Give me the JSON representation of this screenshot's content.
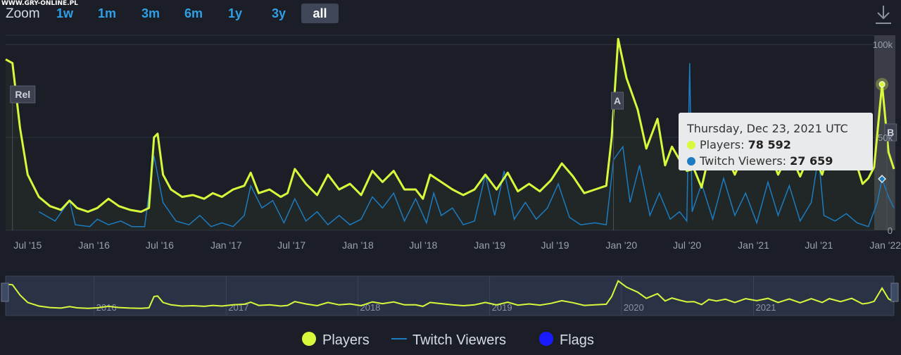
{
  "watermark": "WWW.GRY-ONLINE.PL",
  "zoom": {
    "label": "Zoom",
    "buttons": [
      {
        "label": "1w",
        "active": false
      },
      {
        "label": "1m",
        "active": false
      },
      {
        "label": "3m",
        "active": false
      },
      {
        "label": "6m",
        "active": false
      },
      {
        "label": "1y",
        "active": false
      },
      {
        "label": "3y",
        "active": false
      },
      {
        "label": "all",
        "active": true
      }
    ]
  },
  "tooltip": {
    "date": "Thursday, Dec 23, 2021 UTC",
    "players_label": "Players: ",
    "players_value": "78 592",
    "viewers_label": "Twitch Viewers: ",
    "viewers_value": "27 659"
  },
  "legend": {
    "players": "Players",
    "viewers": "Twitch Viewers",
    "flags": "Flags"
  },
  "colors": {
    "players": "#d7f83b",
    "viewers": "#1c7cbf",
    "flags": "#1a1aff",
    "background": "#1b1e27",
    "accent": "#2f9fe6"
  },
  "chart_data": {
    "type": "line",
    "x_range": [
      "2015-05-01",
      "2022-01-25"
    ],
    "y_range": [
      0,
      105000
    ],
    "y_ticks": [
      {
        "value": 0,
        "label": "0"
      },
      {
        "value": 50000,
        "label": "50k"
      },
      {
        "value": 100000,
        "label": "100k"
      }
    ],
    "x_ticks": [
      {
        "date": "2015-07-01",
        "label": "Jul '15"
      },
      {
        "date": "2016-01-01",
        "label": "Jan '16"
      },
      {
        "date": "2016-07-01",
        "label": "Jul '16"
      },
      {
        "date": "2017-01-01",
        "label": "Jan '17"
      },
      {
        "date": "2017-07-01",
        "label": "Jul '17"
      },
      {
        "date": "2018-01-01",
        "label": "Jan '18"
      },
      {
        "date": "2018-07-01",
        "label": "Jul '18"
      },
      {
        "date": "2019-01-01",
        "label": "Jan '19"
      },
      {
        "date": "2019-07-01",
        "label": "Jul '19"
      },
      {
        "date": "2020-01-01",
        "label": "Jan '20"
      },
      {
        "date": "2020-07-01",
        "label": "Jul '20"
      },
      {
        "date": "2021-01-01",
        "label": "Jan '21"
      },
      {
        "date": "2021-07-01",
        "label": "Jul '21"
      },
      {
        "date": "2022-01-01",
        "label": "Jan '22"
      }
    ],
    "navigator_labels": [
      {
        "date": "2016-01-01",
        "label": "2016"
      },
      {
        "date": "2017-01-01",
        "label": "2017"
      },
      {
        "date": "2018-01-01",
        "label": "2018"
      },
      {
        "date": "2019-01-01",
        "label": "2019"
      },
      {
        "date": "2020-01-01",
        "label": "2020"
      },
      {
        "date": "2021-01-01",
        "label": "2021"
      }
    ],
    "flags": [
      {
        "date": "2015-05-20",
        "label": "Rel"
      },
      {
        "date": "2019-12-10",
        "label": "A"
      },
      {
        "date": "2022-01-05",
        "label": "B"
      }
    ],
    "series": [
      {
        "name": "Players",
        "points": [
          [
            "2015-05-01",
            92000
          ],
          [
            "2015-05-20",
            90000
          ],
          [
            "2015-06-10",
            55000
          ],
          [
            "2015-07-01",
            30000
          ],
          [
            "2015-08-01",
            18000
          ],
          [
            "2015-09-01",
            13000
          ],
          [
            "2015-10-01",
            11000
          ],
          [
            "2015-10-25",
            16000
          ],
          [
            "2015-11-15",
            12000
          ],
          [
            "2015-12-15",
            10000
          ],
          [
            "2016-01-10",
            12000
          ],
          [
            "2016-02-10",
            17000
          ],
          [
            "2016-03-10",
            13000
          ],
          [
            "2016-04-10",
            11000
          ],
          [
            "2016-05-10",
            10000
          ],
          [
            "2016-06-01",
            12000
          ],
          [
            "2016-06-15",
            50000
          ],
          [
            "2016-06-25",
            52000
          ],
          [
            "2016-07-10",
            30000
          ],
          [
            "2016-08-01",
            22000
          ],
          [
            "2016-09-01",
            18000
          ],
          [
            "2016-10-01",
            19000
          ],
          [
            "2016-11-01",
            17000
          ],
          [
            "2016-11-25",
            20000
          ],
          [
            "2016-12-20",
            18000
          ],
          [
            "2017-01-20",
            22000
          ],
          [
            "2017-02-20",
            24000
          ],
          [
            "2017-03-10",
            31000
          ],
          [
            "2017-04-01",
            20000
          ],
          [
            "2017-05-01",
            22000
          ],
          [
            "2017-06-01",
            18000
          ],
          [
            "2017-06-20",
            20000
          ],
          [
            "2017-07-10",
            33000
          ],
          [
            "2017-08-10",
            25000
          ],
          [
            "2017-09-10",
            19000
          ],
          [
            "2017-10-10",
            30000
          ],
          [
            "2017-11-10",
            22000
          ],
          [
            "2017-12-10",
            25000
          ],
          [
            "2018-01-10",
            19000
          ],
          [
            "2018-02-10",
            32000
          ],
          [
            "2018-03-10",
            26000
          ],
          [
            "2018-04-10",
            32000
          ],
          [
            "2018-05-10",
            22000
          ],
          [
            "2018-06-10",
            22000
          ],
          [
            "2018-06-30",
            17000
          ],
          [
            "2018-07-20",
            30000
          ],
          [
            "2018-08-20",
            26000
          ],
          [
            "2018-09-20",
            22000
          ],
          [
            "2018-10-20",
            19000
          ],
          [
            "2018-11-20",
            22000
          ],
          [
            "2018-12-20",
            30000
          ],
          [
            "2019-01-20",
            22000
          ],
          [
            "2019-02-20",
            31000
          ],
          [
            "2019-03-20",
            21000
          ],
          [
            "2019-04-20",
            25000
          ],
          [
            "2019-05-20",
            21000
          ],
          [
            "2019-06-20",
            27000
          ],
          [
            "2019-07-20",
            36000
          ],
          [
            "2019-08-20",
            29000
          ],
          [
            "2019-09-20",
            20000
          ],
          [
            "2019-10-20",
            22000
          ],
          [
            "2019-11-20",
            24000
          ],
          [
            "2019-12-05",
            50000
          ],
          [
            "2019-12-23",
            103000
          ],
          [
            "2020-01-15",
            82000
          ],
          [
            "2020-02-15",
            65000
          ],
          [
            "2020-03-10",
            44000
          ],
          [
            "2020-04-10",
            60000
          ],
          [
            "2020-05-01",
            35000
          ],
          [
            "2020-05-20",
            45000
          ],
          [
            "2020-06-10",
            38000
          ],
          [
            "2020-06-30",
            32000
          ],
          [
            "2020-07-20",
            33000
          ],
          [
            "2020-08-10",
            23000
          ],
          [
            "2020-08-30",
            40000
          ],
          [
            "2020-09-20",
            35000
          ],
          [
            "2020-10-15",
            41000
          ],
          [
            "2020-11-10",
            30000
          ],
          [
            "2020-12-10",
            43000
          ],
          [
            "2021-01-10",
            36000
          ],
          [
            "2021-02-10",
            44000
          ],
          [
            "2021-03-10",
            30000
          ],
          [
            "2021-04-10",
            42000
          ],
          [
            "2021-05-10",
            29000
          ],
          [
            "2021-06-10",
            43000
          ],
          [
            "2021-07-10",
            30000
          ],
          [
            "2021-07-30",
            43000
          ],
          [
            "2021-08-30",
            33000
          ],
          [
            "2021-09-30",
            44000
          ],
          [
            "2021-10-30",
            25000
          ],
          [
            "2021-11-15",
            28000
          ],
          [
            "2021-12-01",
            34000
          ],
          [
            "2021-12-23",
            78592
          ],
          [
            "2022-01-10",
            42000
          ],
          [
            "2022-01-25",
            33000
          ]
        ]
      },
      {
        "name": "Twitch Viewers",
        "points": [
          [
            "2015-08-01",
            10000
          ],
          [
            "2015-09-15",
            5000
          ],
          [
            "2015-10-25",
            16000
          ],
          [
            "2015-11-10",
            3000
          ],
          [
            "2015-12-20",
            2000
          ],
          [
            "2016-01-10",
            6000
          ],
          [
            "2016-02-10",
            3000
          ],
          [
            "2016-03-15",
            5000
          ],
          [
            "2016-04-15",
            2000
          ],
          [
            "2016-05-20",
            2000
          ],
          [
            "2016-06-15",
            40000
          ],
          [
            "2016-06-25",
            30000
          ],
          [
            "2016-07-10",
            15000
          ],
          [
            "2016-08-15",
            5000
          ],
          [
            "2016-09-20",
            3000
          ],
          [
            "2016-10-20",
            8000
          ],
          [
            "2016-11-20",
            2000
          ],
          [
            "2016-12-20",
            4000
          ],
          [
            "2017-01-20",
            2000
          ],
          [
            "2017-02-20",
            8000
          ],
          [
            "2017-03-10",
            24000
          ],
          [
            "2017-04-10",
            12000
          ],
          [
            "2017-05-10",
            16000
          ],
          [
            "2017-06-10",
            4000
          ],
          [
            "2017-07-10",
            17000
          ],
          [
            "2017-08-10",
            5000
          ],
          [
            "2017-09-10",
            10000
          ],
          [
            "2017-10-10",
            3000
          ],
          [
            "2017-11-10",
            8000
          ],
          [
            "2017-12-10",
            3000
          ],
          [
            "2018-01-10",
            6000
          ],
          [
            "2018-02-10",
            18000
          ],
          [
            "2018-03-10",
            12000
          ],
          [
            "2018-04-10",
            20000
          ],
          [
            "2018-05-10",
            5000
          ],
          [
            "2018-06-10",
            17000
          ],
          [
            "2018-07-10",
            4000
          ],
          [
            "2018-07-30",
            20000
          ],
          [
            "2018-08-20",
            8000
          ],
          [
            "2018-09-20",
            12000
          ],
          [
            "2018-10-20",
            3000
          ],
          [
            "2018-11-20",
            5000
          ],
          [
            "2018-12-20",
            30000
          ],
          [
            "2019-01-15",
            8000
          ],
          [
            "2019-02-10",
            32000
          ],
          [
            "2019-03-10",
            6000
          ],
          [
            "2019-04-10",
            15000
          ],
          [
            "2019-05-10",
            6000
          ],
          [
            "2019-06-10",
            12000
          ],
          [
            "2019-07-10",
            25000
          ],
          [
            "2019-08-10",
            7000
          ],
          [
            "2019-09-10",
            3000
          ],
          [
            "2019-10-20",
            4000
          ],
          [
            "2019-11-20",
            3000
          ],
          [
            "2019-12-10",
            38000
          ],
          [
            "2020-01-05",
            45000
          ],
          [
            "2020-01-25",
            15000
          ],
          [
            "2020-02-20",
            35000
          ],
          [
            "2020-03-20",
            8000
          ],
          [
            "2020-04-15",
            20000
          ],
          [
            "2020-05-15",
            6000
          ],
          [
            "2020-06-10",
            10000
          ],
          [
            "2020-06-30",
            5000
          ],
          [
            "2020-07-08",
            90000
          ],
          [
            "2020-07-15",
            10000
          ],
          [
            "2020-08-10",
            25000
          ],
          [
            "2020-09-10",
            6000
          ],
          [
            "2020-10-10",
            28000
          ],
          [
            "2020-11-10",
            8000
          ],
          [
            "2020-12-10",
            20000
          ],
          [
            "2021-01-10",
            4000
          ],
          [
            "2021-02-10",
            26000
          ],
          [
            "2021-03-10",
            8000
          ],
          [
            "2021-04-10",
            24000
          ],
          [
            "2021-05-10",
            5000
          ],
          [
            "2021-06-10",
            15000
          ],
          [
            "2021-06-30",
            40000
          ],
          [
            "2021-07-15",
            8000
          ],
          [
            "2021-08-15",
            5000
          ],
          [
            "2021-09-15",
            9000
          ],
          [
            "2021-10-15",
            4000
          ],
          [
            "2021-11-15",
            2000
          ],
          [
            "2021-12-10",
            15000
          ],
          [
            "2021-12-23",
            27659
          ],
          [
            "2022-01-10",
            18000
          ],
          [
            "2022-01-25",
            12000
          ]
        ]
      }
    ]
  }
}
